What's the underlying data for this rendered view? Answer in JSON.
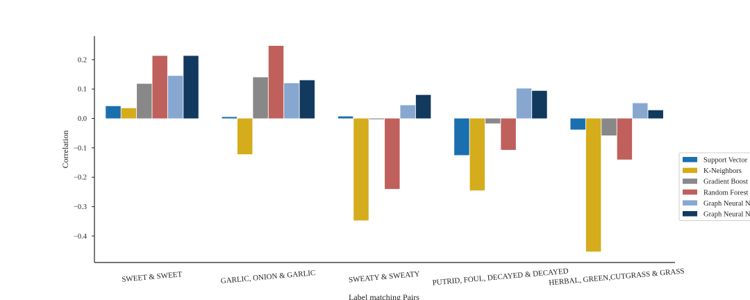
{
  "chart_data": {
    "type": "bar",
    "title": "",
    "xlabel": "Label matching Pairs",
    "ylabel": "Correlation",
    "ylim": [
      -0.49,
      0.28
    ],
    "yticks": [
      0.2,
      0.1,
      0.0,
      -0.1,
      -0.2,
      -0.3,
      -0.4
    ],
    "ytick_labels": [
      "0.2",
      "0.1",
      "0.0",
      "−0.1",
      "−0.2",
      "−0.3",
      "−0.4"
    ],
    "grid": false,
    "legend_position": "right",
    "categories": [
      "SWEET & SWEET",
      "GARLIC, ONION & GARLIC",
      "SWEATY & SWEATY",
      "PUTRID, FOUL, DECAYED & DECAYED",
      "HERBAL, GREEN,CUTGRASS & GRASS"
    ],
    "series": [
      {
        "name": "Support Vector",
        "color": "#1a6faf",
        "values": [
          0.042,
          0.005,
          0.007,
          -0.125,
          -0.038
        ]
      },
      {
        "name": "K-Neighbors",
        "color": "#d4ac1c",
        "values": [
          0.035,
          -0.122,
          -0.347,
          -0.245,
          -0.453
        ]
      },
      {
        "name": "Gradient Boost",
        "color": "#888888",
        "values": [
          0.118,
          0.14,
          -0.002,
          -0.017,
          -0.058
        ]
      },
      {
        "name": "Random Forest",
        "color": "#bf605c",
        "values": [
          0.213,
          0.247,
          -0.24,
          -0.107,
          -0.14
        ]
      },
      {
        "name": "Graph Neural N",
        "color": "#87a7d1",
        "values": [
          0.145,
          0.12,
          0.045,
          0.102,
          0.052
        ]
      },
      {
        "name": "Graph Neural N",
        "color": "#12395e",
        "values": [
          0.213,
          0.13,
          0.08,
          0.094,
          0.028
        ]
      }
    ]
  }
}
